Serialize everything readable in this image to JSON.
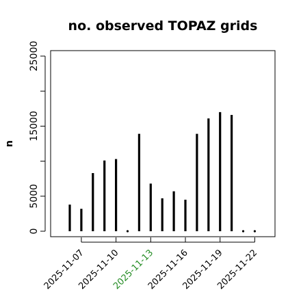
{
  "chart_data": {
    "type": "bar",
    "title": "no. observed TOPAZ grids",
    "xlabel": "",
    "ylabel": "n",
    "x": [
      "2025-11-06",
      "2025-11-07",
      "2025-11-08",
      "2025-11-09",
      "2025-11-10",
      "2025-11-11",
      "2025-11-12",
      "2025-11-13",
      "2025-11-14",
      "2025-11-15",
      "2025-11-16",
      "2025-11-17",
      "2025-11-18",
      "2025-11-19",
      "2025-11-20",
      "2025-11-21",
      "2025-11-22"
    ],
    "values": [
      3800,
      3200,
      8300,
      10100,
      10300,
      0,
      13900,
      6800,
      4700,
      5700,
      4500,
      13900,
      16100,
      17000,
      16600,
      0,
      0
    ],
    "x_tick_labels": [
      {
        "date": "2025-11-07",
        "label": "2025-11-07",
        "color": "#000000"
      },
      {
        "date": "2025-11-10",
        "label": "2025-11-10",
        "color": "#000000"
      },
      {
        "date": "2025-11-13",
        "label": "2025-11-13",
        "color": "#228B22"
      },
      {
        "date": "2025-11-16",
        "label": "2025-11-16",
        "color": "#000000"
      },
      {
        "date": "2025-11-19",
        "label": "2025-11-19",
        "color": "#000000"
      },
      {
        "date": "2025-11-22",
        "label": "2025-11-22",
        "color": "#000000"
      }
    ],
    "y_ticks": [
      0,
      5000,
      15000,
      25000
    ],
    "y_minor_ticks": [
      10000,
      20000
    ],
    "ylim": [
      0,
      25000
    ],
    "xlim": [
      "2025-11-05",
      "2025-11-23"
    ],
    "grid": false,
    "colors": {
      "bar": "#000000",
      "highlight_label": "#228B22"
    }
  }
}
